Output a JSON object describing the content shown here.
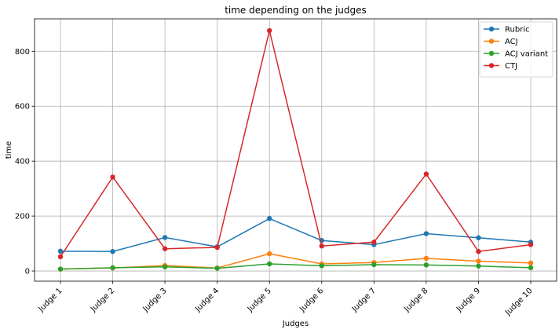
{
  "chart_data": {
    "type": "line",
    "title": "time depending on the judges",
    "xlabel": "Judges",
    "ylabel": "time",
    "categories": [
      "Judge 1",
      "Judge 2",
      "Judge 3",
      "Judge 4",
      "Judge 5",
      "Judge 6",
      "Judge 7",
      "Judge 8",
      "Judge 9",
      "Judge 10"
    ],
    "ylim": [
      -37,
      918
    ],
    "yticks": [
      0,
      200,
      400,
      600,
      800
    ],
    "grid": true,
    "legend_position": "top-right",
    "series": [
      {
        "name": "Rubric",
        "color": "#1f77b4",
        "values": [
          72,
          71,
          122,
          88,
          191,
          111,
          96,
          136,
          121,
          105
        ]
      },
      {
        "name": "ACJ",
        "color": "#ff7f0e",
        "values": [
          7,
          11,
          20,
          11,
          63,
          26,
          31,
          46,
          36,
          29
        ]
      },
      {
        "name": "ACJ variant",
        "color": "#2ca02c",
        "values": [
          7,
          12,
          15,
          10,
          26,
          19,
          23,
          22,
          18,
          12
        ]
      },
      {
        "name": "CTJ",
        "color": "#d62728",
        "values": [
          52,
          342,
          81,
          86,
          875,
          91,
          105,
          353,
          71,
          96
        ]
      }
    ]
  }
}
